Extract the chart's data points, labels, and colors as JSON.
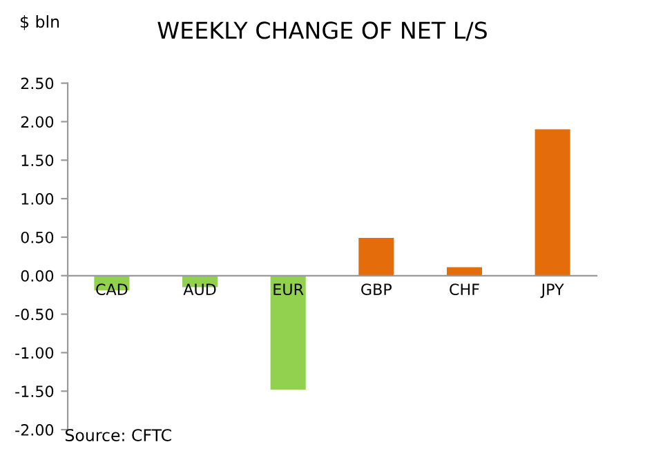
{
  "chart_data": {
    "type": "bar",
    "title": "WEEKLY CHANGE OF NET L/S",
    "ylabel": "$ bln",
    "categories": [
      "CAD",
      "AUD",
      "EUR",
      "GBP",
      "CHF",
      "JPY"
    ],
    "values": [
      -0.19,
      -0.15,
      -1.48,
      0.49,
      0.11,
      1.9
    ],
    "colors": [
      "#92d050",
      "#92d050",
      "#92d050",
      "#e46c0a",
      "#e46c0a",
      "#e46c0a"
    ],
    "ylim": [
      -2,
      2.5
    ],
    "yticks": [
      {
        "value": -2,
        "label": "-2.00"
      },
      {
        "value": -1.5,
        "label": "-1.50"
      },
      {
        "value": -1,
        "label": "-1.00"
      },
      {
        "value": -0.5,
        "label": "-0.50"
      },
      {
        "value": 0,
        "label": "0.00"
      },
      {
        "value": 0.5,
        "label": "0.50"
      },
      {
        "value": 1,
        "label": "1.00"
      },
      {
        "value": 1.5,
        "label": "1.50"
      },
      {
        "value": 2,
        "label": "2.00"
      },
      {
        "value": 2.5,
        "label": "2.50"
      }
    ],
    "grid": false,
    "legend": false,
    "annotations": [
      "Source: CFTC"
    ]
  }
}
